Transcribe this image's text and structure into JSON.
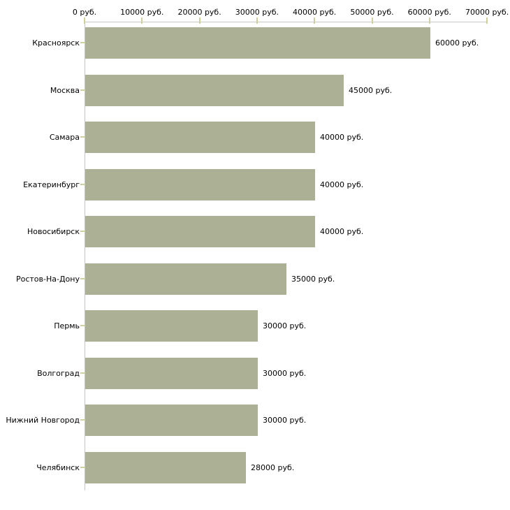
{
  "chart_data": {
    "type": "bar",
    "orientation": "horizontal",
    "title": "",
    "categories": [
      "Красноярск",
      "Москва",
      "Самара",
      "Екатеринбург",
      "Новосибирск",
      "Ростов-На-Дону",
      "Пермь",
      "Волгоград",
      "Нижний Новгород",
      "Челябинск"
    ],
    "values": [
      60000,
      45000,
      40000,
      40000,
      40000,
      35000,
      30000,
      30000,
      30000,
      28000
    ],
    "bar_labels": [
      "60000 руб.",
      "45000 руб.",
      "40000 руб.",
      "40000 руб.",
      "40000 руб.",
      "35000 руб.",
      "30000 руб.",
      "30000 руб.",
      "30000 руб.",
      "28000 руб."
    ],
    "x_axis": {
      "position": "top",
      "min": 0,
      "max": 70000,
      "tick_values": [
        0,
        10000,
        20000,
        30000,
        40000,
        50000,
        60000,
        70000
      ],
      "tick_labels": [
        "0 руб.",
        "10000 руб.",
        "20000 руб.",
        "30000 руб.",
        "40000 руб.",
        "50000 руб.",
        "60000 руб.",
        "70000 руб."
      ]
    },
    "grid": false,
    "legend": false,
    "colors": {
      "bar": "#acb196",
      "axis_line": "#c6c6c6",
      "tick_mark": "#cfcfa0",
      "text": "#000000",
      "background": "#ffffff"
    }
  }
}
